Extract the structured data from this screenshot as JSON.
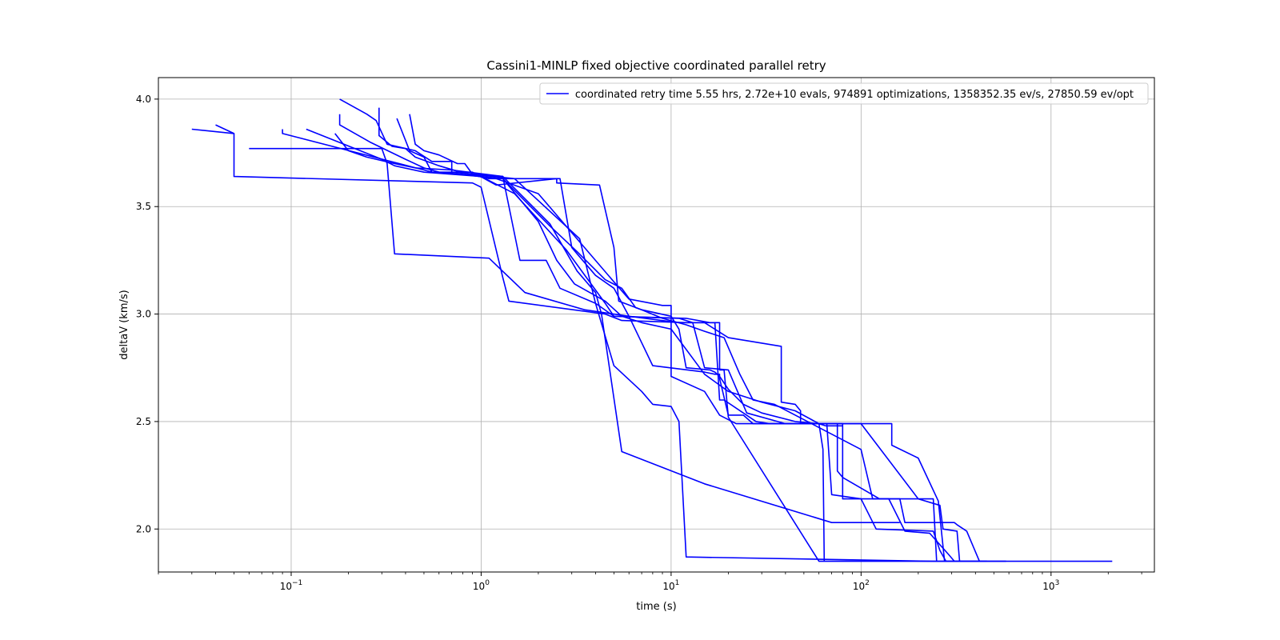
{
  "chart_data": {
    "type": "line",
    "title": "Cassini1-MINLP fixed objective coordinated parallel retry",
    "xlabel": "time (s)",
    "ylabel": "deltaV (km/s)",
    "x_scale": "log",
    "xlim": [
      0.02,
      3500
    ],
    "ylim": [
      1.8,
      4.1
    ],
    "grid": true,
    "legend_position": "top-right",
    "line_color": "#0000ff",
    "xtick_labels": [
      {
        "value": 0.1,
        "base": "10",
        "exp": "−1"
      },
      {
        "value": 1,
        "base": "10",
        "exp": "0"
      },
      {
        "value": 10,
        "base": "10",
        "exp": "1"
      },
      {
        "value": 100,
        "base": "10",
        "exp": "2"
      },
      {
        "value": 1000,
        "base": "10",
        "exp": "3"
      }
    ],
    "ytick_labels": [
      "2.0",
      "2.5",
      "3.0",
      "3.5",
      "4.0"
    ],
    "series": [
      {
        "name": "coordinated retry time 5.55 hrs, 2.72e+10 evals, 974891 optimizations, 1358352.35 ev/s, 27850.59 ev/opt",
        "runs": [
          [
            [
              0.03,
              3.86
            ],
            [
              0.05,
              3.84
            ],
            [
              0.05,
              3.64
            ],
            [
              0.9,
              3.61
            ],
            [
              1.0,
              3.59
            ],
            [
              1.3,
              3.17
            ],
            [
              1.4,
              3.06
            ],
            [
              4.5,
              3.0
            ],
            [
              5.5,
              2.97
            ],
            [
              12,
              2.96
            ],
            [
              15,
              2.96
            ],
            [
              20,
              2.89
            ],
            [
              38,
              2.85
            ],
            [
              38,
              2.59
            ],
            [
              45,
              2.58
            ],
            [
              48,
              2.55
            ],
            [
              48,
              2.49
            ],
            [
              145,
              2.49
            ],
            [
              145,
              2.39
            ],
            [
              200,
              2.33
            ],
            [
              255,
              2.13
            ],
            [
              275,
              1.85
            ],
            [
              2100,
              1.85
            ]
          ],
          [
            [
              0.04,
              3.88
            ],
            [
              0.05,
              3.84
            ]
          ],
          [
            [
              0.06,
              3.77
            ],
            [
              0.3,
              3.77
            ],
            [
              0.32,
              3.7
            ],
            [
              0.35,
              3.28
            ],
            [
              1.1,
              3.26
            ],
            [
              1.7,
              3.1
            ],
            [
              3.5,
              3.02
            ],
            [
              6,
              2.99
            ],
            [
              11,
              2.96
            ],
            [
              16,
              2.96
            ],
            [
              17,
              2.96
            ],
            [
              18,
              2.6
            ],
            [
              19,
              2.6
            ],
            [
              28,
              2.5
            ],
            [
              33,
              2.49
            ],
            [
              60,
              2.49
            ],
            [
              63,
              2.37
            ],
            [
              64,
              1.85
            ]
          ],
          [
            [
              0.09,
              3.86
            ],
            [
              0.09,
              3.84
            ],
            [
              0.5,
              3.67
            ],
            [
              0.55,
              3.66
            ],
            [
              0.8,
              3.65
            ],
            [
              1.2,
              3.63
            ],
            [
              2,
              3.56
            ],
            [
              5,
              3.15
            ],
            [
              6,
              3.07
            ],
            [
              9,
              3.04
            ],
            [
              10,
              3.04
            ],
            [
              10,
              2.71
            ],
            [
              15,
              2.64
            ],
            [
              18,
              2.53
            ],
            [
              22,
              2.49
            ],
            [
              66,
              2.49
            ],
            [
              70,
              2.16
            ],
            [
              100,
              2.14
            ],
            [
              120,
              2.0
            ],
            [
              240,
              1.99
            ],
            [
              260,
              1.9
            ],
            [
              280,
              1.85
            ]
          ],
          [
            [
              0.12,
              3.86
            ],
            [
              0.3,
              3.72
            ],
            [
              0.35,
              3.69
            ],
            [
              0.5,
              3.66
            ],
            [
              1.0,
              3.64
            ],
            [
              1.5,
              3.56
            ],
            [
              2.8,
              3.3
            ],
            [
              4.5,
              3.05
            ],
            [
              5,
              2.99
            ],
            [
              11,
              2.98
            ],
            [
              13,
              2.96
            ],
            [
              15,
              2.75
            ],
            [
              20,
              2.74
            ],
            [
              25,
              2.54
            ],
            [
              40,
              2.49
            ],
            [
              80,
              2.49
            ],
            [
              80,
              2.14
            ],
            [
              140,
              2.14
            ],
            [
              170,
              1.99
            ],
            [
              230,
              1.98
            ],
            [
              290,
              1.88
            ],
            [
              310,
              1.85
            ]
          ],
          [
            [
              0.17,
              3.84
            ],
            [
              0.2,
              3.76
            ],
            [
              0.25,
              3.73
            ],
            [
              0.35,
              3.7
            ],
            [
              0.45,
              3.68
            ],
            [
              0.7,
              3.67
            ],
            [
              1.3,
              3.64
            ],
            [
              2.3,
              3.42
            ],
            [
              3.2,
              3.2
            ],
            [
              4,
              3.1
            ],
            [
              4.3,
              3.0
            ],
            [
              5.5,
              2.36
            ],
            [
              15,
              2.21
            ],
            [
              70,
              2.03
            ],
            [
              160,
              2.03
            ]
          ],
          [
            [
              0.18,
              3.93
            ],
            [
              0.18,
              3.88
            ],
            [
              0.26,
              3.8
            ],
            [
              0.4,
              3.72
            ],
            [
              0.5,
              3.68
            ],
            [
              0.6,
              3.66
            ],
            [
              1.3,
              3.63
            ],
            [
              2,
              3.43
            ],
            [
              2.5,
              3.25
            ],
            [
              3.1,
              3.14
            ],
            [
              4.5,
              3.06
            ],
            [
              5.5,
              2.99
            ],
            [
              7,
              2.96
            ],
            [
              10,
              2.93
            ],
            [
              15,
              2.72
            ],
            [
              20,
              2.64
            ],
            [
              30,
              2.59
            ],
            [
              45,
              2.55
            ],
            [
              60,
              2.49
            ],
            [
              75,
              2.49
            ],
            [
              75,
              2.27
            ],
            [
              80,
              2.24
            ],
            [
              125,
              2.14
            ],
            [
              240,
              2.14
            ],
            [
              250,
              1.85
            ]
          ],
          [
            [
              0.18,
              4.0
            ],
            [
              0.25,
              3.93
            ],
            [
              0.28,
              3.9
            ],
            [
              0.32,
              3.79
            ],
            [
              0.45,
              3.76
            ],
            [
              0.55,
              3.71
            ],
            [
              0.7,
              3.71
            ],
            [
              0.7,
              3.66
            ],
            [
              1.3,
              3.64
            ],
            [
              1.6,
              3.25
            ],
            [
              2.2,
              3.25
            ],
            [
              2.6,
              3.12
            ],
            [
              4,
              3.05
            ],
            [
              5,
              2.99
            ],
            [
              12,
              2.98
            ],
            [
              16,
              2.96
            ],
            [
              18,
              2.96
            ],
            [
              18,
              2.74
            ],
            [
              19,
              2.74
            ],
            [
              20,
              2.52
            ],
            [
              60,
              1.85
            ],
            [
              580,
              1.85
            ]
          ],
          [
            [
              0.29,
              3.96
            ],
            [
              0.29,
              3.83
            ],
            [
              0.34,
              3.78
            ],
            [
              0.4,
              3.77
            ],
            [
              0.45,
              3.73
            ],
            [
              0.6,
              3.69
            ],
            [
              0.78,
              3.66
            ],
            [
              1.1,
              3.63
            ],
            [
              2.5,
              3.63
            ],
            [
              2.5,
              3.61
            ],
            [
              4.2,
              3.6
            ],
            [
              5,
              3.31
            ],
            [
              5.3,
              3.06
            ],
            [
              7,
              3.02
            ],
            [
              10,
              2.99
            ],
            [
              11,
              2.93
            ],
            [
              12,
              2.75
            ],
            [
              16,
              2.74
            ],
            [
              17,
              2.73
            ],
            [
              18,
              2.71
            ],
            [
              20,
              2.65
            ],
            [
              24,
              2.58
            ],
            [
              30,
              2.54
            ],
            [
              45,
              2.5
            ],
            [
              60,
              2.49
            ],
            [
              65,
              2.48
            ],
            [
              80,
              2.48
            ]
          ],
          [
            [
              0.36,
              3.91
            ],
            [
              0.42,
              3.76
            ],
            [
              0.5,
              3.73
            ],
            [
              0.55,
              3.66
            ],
            [
              0.9,
              3.66
            ],
            [
              1.2,
              3.6
            ],
            [
              2.5,
              3.63
            ],
            [
              2.6,
              3.63
            ],
            [
              3,
              3.31
            ],
            [
              3.2,
              3.28
            ],
            [
              4,
              3.18
            ],
            [
              5,
              3.12
            ],
            [
              6,
              2.99
            ],
            [
              8,
              2.76
            ],
            [
              15,
              2.73
            ],
            [
              17,
              2.72
            ],
            [
              18,
              2.72
            ],
            [
              18,
              2.7
            ],
            [
              20,
              2.53
            ],
            [
              24,
              2.53
            ],
            [
              27,
              2.49
            ],
            [
              100,
              2.49
            ],
            [
              200,
              2.14
            ],
            [
              260,
              2.11
            ],
            [
              270,
              2.0
            ],
            [
              320,
              1.99
            ],
            [
              330,
              1.85
            ]
          ],
          [
            [
              0.42,
              3.93
            ],
            [
              0.45,
              3.79
            ],
            [
              0.5,
              3.76
            ],
            [
              0.6,
              3.74
            ],
            [
              0.75,
              3.7
            ],
            [
              0.82,
              3.7
            ],
            [
              0.9,
              3.65
            ],
            [
              1.5,
              3.63
            ],
            [
              3.3,
              3.35
            ],
            [
              4,
              3.05
            ],
            [
              5,
              2.76
            ],
            [
              7,
              2.64
            ],
            [
              8,
              2.58
            ],
            [
              10,
              2.57
            ],
            [
              11,
              2.5
            ],
            [
              12,
              1.87
            ],
            [
              240,
              1.85
            ],
            [
              460,
              1.85
            ]
          ],
          [
            [
              1.3,
              3.63
            ],
            [
              2.3,
              3.41
            ],
            [
              3.2,
              3.29
            ],
            [
              4.5,
              3.16
            ],
            [
              5.5,
              3.12
            ],
            [
              6.5,
              3.03
            ],
            [
              7,
              3.02
            ],
            [
              9,
              2.98
            ],
            [
              12,
              2.95
            ],
            [
              15,
              2.92
            ],
            [
              19,
              2.89
            ],
            [
              23,
              2.72
            ],
            [
              27,
              2.6
            ],
            [
              35,
              2.58
            ],
            [
              100,
              2.37
            ],
            [
              115,
              2.14
            ],
            [
              160,
              2.14
            ],
            [
              170,
              2.03
            ],
            [
              310,
              2.03
            ],
            [
              320,
              2.02
            ],
            [
              360,
              1.99
            ],
            [
              420,
              1.85
            ]
          ]
        ]
      }
    ]
  }
}
